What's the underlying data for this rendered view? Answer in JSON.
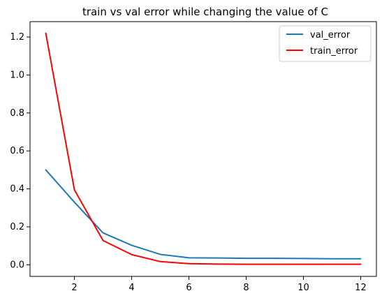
{
  "chart_data": {
    "type": "line",
    "title": "train vs val error while changing the value of C",
    "xlabel": "",
    "ylabel": "",
    "x": [
      1,
      2,
      3,
      4,
      5,
      6,
      7,
      8,
      9,
      10,
      11,
      12
    ],
    "series": [
      {
        "name": "val_error",
        "color": "#1f77b4",
        "values": [
          0.5,
          0.33,
          0.168,
          0.103,
          0.055,
          0.037,
          0.036,
          0.034,
          0.034,
          0.033,
          0.032,
          0.032
        ]
      },
      {
        "name": "train_error",
        "color": "#ff0000",
        "values": [
          1.22,
          0.395,
          0.128,
          0.054,
          0.017,
          0.006,
          0.004,
          0.003,
          0.003,
          0.003,
          0.003,
          0.003
        ]
      }
    ],
    "xlim": [
      0.45,
      12.55
    ],
    "ylim": [
      -0.061,
      1.281
    ],
    "xticks": [
      2,
      4,
      6,
      8,
      10,
      12
    ],
    "yticks": [
      0.0,
      0.2,
      0.4,
      0.6,
      0.8,
      1.0,
      1.2
    ],
    "grid": false,
    "legend_position": "top-right"
  }
}
